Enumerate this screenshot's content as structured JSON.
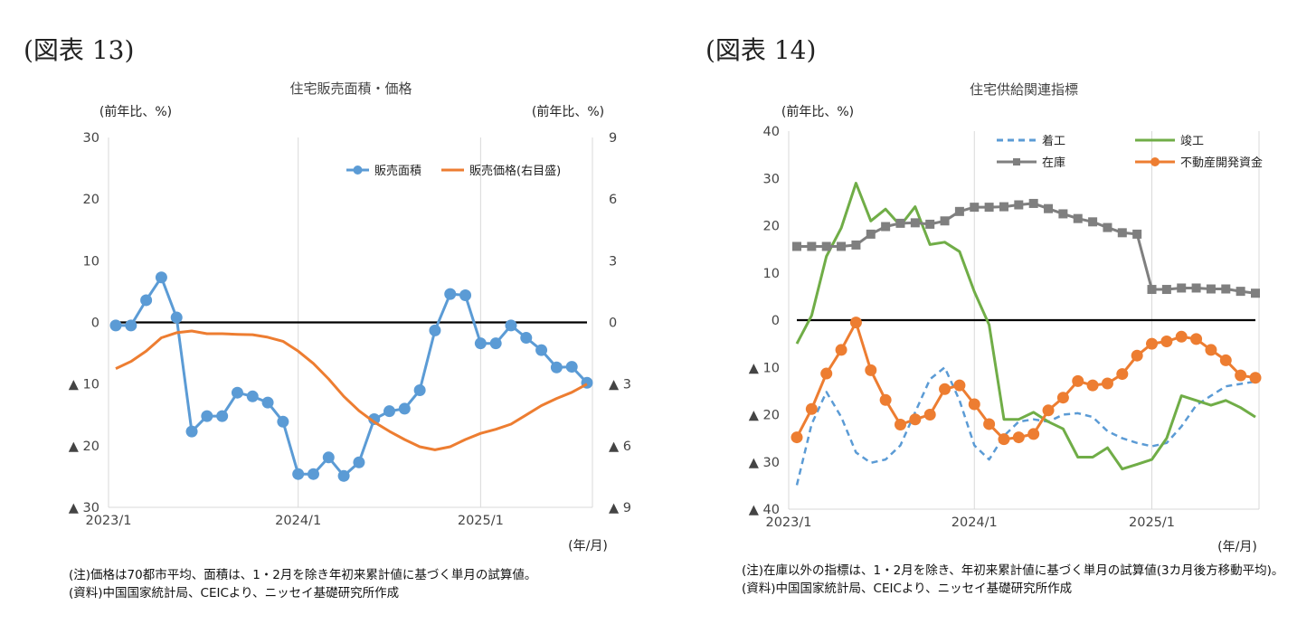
{
  "figures": [
    {
      "label": "(図表 13)",
      "notes": [
        "(注)価格は70都市平均、面積は、1・2月を除き年初来累計値に基づく単月の試算値。",
        "(資料)中国国家統計局、CEICより、ニッセイ基礎研究所作成"
      ]
    },
    {
      "label": "(図表 14)",
      "notes": [
        "(注)在庫以外の指標は、1・2月を除き、年初来累計値に基づく単月の試算値(3カ月後方移動平均)。",
        "(資料)中国国家統計局、CEICより、ニッセイ基礎研究所作成"
      ]
    }
  ],
  "chart_data": [
    {
      "type": "line",
      "title": "住宅販売面積・価格",
      "ylabel_left": "(前年比、%)",
      "ylabel_right": "(前年比、%)",
      "xlabel": "(年/月)",
      "x_ticks": [
        "2023/1",
        "2024/1",
        "2025/1"
      ],
      "x_tick_index": [
        0,
        12,
        24
      ],
      "n_points": 32,
      "ylim_left": [
        -30,
        30
      ],
      "yticks_left": [
        30,
        20,
        10,
        0,
        -10,
        -20,
        -30
      ],
      "ytick_labels_left": [
        "30",
        "20",
        "10",
        "0",
        "▲ 10",
        "▲ 20",
        "▲ 30"
      ],
      "ylim_right": [
        -9,
        9
      ],
      "yticks_right": [
        9,
        6,
        3,
        0,
        -3,
        -6,
        -9
      ],
      "ytick_labels_right": [
        "9",
        "6",
        "3",
        "0",
        "▲ 3",
        "▲ 6",
        "▲ 9"
      ],
      "legend_position": "top-right",
      "grid": "vertical at year ticks",
      "series": [
        {
          "name": "販売面積",
          "axis": "left",
          "color": "#5b9bd5",
          "style": "line-markers",
          "values": [
            -0.5,
            -0.5,
            3.6,
            7.3,
            0.8,
            -17.7,
            -15.2,
            -15.2,
            -11.4,
            -12.0,
            -13.0,
            -16.1,
            -24.6,
            -24.6,
            -21.9,
            -24.9,
            -22.7,
            -15.7,
            -14.4,
            -14.0,
            -11.0,
            -1.3,
            4.6,
            4.4,
            -3.4,
            -3.4,
            -0.5,
            -2.5,
            -4.5,
            -7.3,
            -7.2,
            -9.8
          ]
        },
        {
          "name": "販売価格(右目盛)",
          "axis": "right",
          "color": "#ed7d31",
          "style": "line",
          "values": [
            -2.25,
            -1.9,
            -1.4,
            -0.75,
            -0.5,
            -0.42,
            -0.55,
            -0.55,
            -0.58,
            -0.6,
            -0.72,
            -0.92,
            -1.4,
            -2.0,
            -2.75,
            -3.6,
            -4.3,
            -4.85,
            -5.3,
            -5.7,
            -6.05,
            -6.2,
            -6.05,
            -5.7,
            -5.4,
            -5.2,
            -4.95,
            -4.5,
            -4.05,
            -3.7,
            -3.4,
            -3.0
          ]
        }
      ]
    },
    {
      "type": "line",
      "title": "住宅供給関連指標",
      "ylabel_left": "(前年比、%)",
      "xlabel": "(年/月)",
      "x_ticks": [
        "2023/1",
        "2024/1",
        "2025/1"
      ],
      "x_tick_index": [
        0,
        12,
        24
      ],
      "n_points": 32,
      "ylim_left": [
        -40,
        40
      ],
      "yticks_left": [
        40,
        30,
        20,
        10,
        0,
        -10,
        -20,
        -30,
        -40
      ],
      "ytick_labels_left": [
        "40",
        "30",
        "20",
        "10",
        "0",
        "▲ 10",
        "▲ 20",
        "▲ 30",
        "▲ 40"
      ],
      "legend_position": "top",
      "grid": "vertical at year ticks",
      "series": [
        {
          "name": "着工",
          "color": "#5b9bd5",
          "style": "dashed",
          "values": [
            -34.9,
            -22.0,
            -15.2,
            -20.5,
            -28.0,
            -30.2,
            -29.5,
            -26.5,
            -19.5,
            -12.5,
            -10.0,
            -17.0,
            -26.5,
            -29.5,
            -24.5,
            -21.5,
            -21.0,
            -21.5,
            -20.0,
            -19.7,
            -20.5,
            -23.5,
            -25.0,
            -26.0,
            -26.7,
            -26.0,
            -22.5,
            -18.0,
            -16.0,
            -14.0,
            -13.5,
            -13.0
          ]
        },
        {
          "name": "竣工",
          "color": "#70ad47",
          "style": "line",
          "values": [
            -5.0,
            1.0,
            13.5,
            19.5,
            29.0,
            21.0,
            23.5,
            20.0,
            24.0,
            16.0,
            16.5,
            14.5,
            6.0,
            -1.0,
            -21.0,
            -21.0,
            -19.5,
            -21.5,
            -23.0,
            -29.0,
            -29.0,
            -27.0,
            -31.5,
            -30.5,
            -29.5,
            -25.0,
            -16.0,
            -17.0,
            -18.0,
            -17.0,
            -18.5,
            -20.5
          ]
        },
        {
          "name": "在庫",
          "color": "#7f7f7f",
          "style": "line-square-markers",
          "values": [
            15.6,
            15.6,
            15.6,
            15.6,
            15.9,
            18.2,
            19.8,
            20.5,
            20.6,
            20.3,
            21.0,
            23.0,
            23.9,
            23.9,
            24.0,
            24.4,
            24.7,
            23.6,
            22.5,
            21.5,
            20.8,
            19.6,
            18.5,
            18.2,
            6.5,
            6.5,
            6.8,
            6.8,
            6.6,
            6.6,
            6.1,
            5.7
          ]
        },
        {
          "name": "不動産開発資金",
          "color": "#ed7d31",
          "style": "line-markers",
          "values": [
            -24.8,
            -18.8,
            -11.3,
            -6.3,
            -0.5,
            -10.6,
            -16.9,
            -22.1,
            -21.0,
            -20.0,
            -14.6,
            -13.8,
            -17.8,
            -22.0,
            -25.2,
            -24.8,
            -24.1,
            -19.1,
            -16.4,
            -12.9,
            -13.8,
            -13.4,
            -11.4,
            -7.5,
            -5.0,
            -4.5,
            -3.5,
            -4.0,
            -6.3,
            -8.5,
            -11.7,
            -12.2
          ]
        }
      ]
    }
  ]
}
